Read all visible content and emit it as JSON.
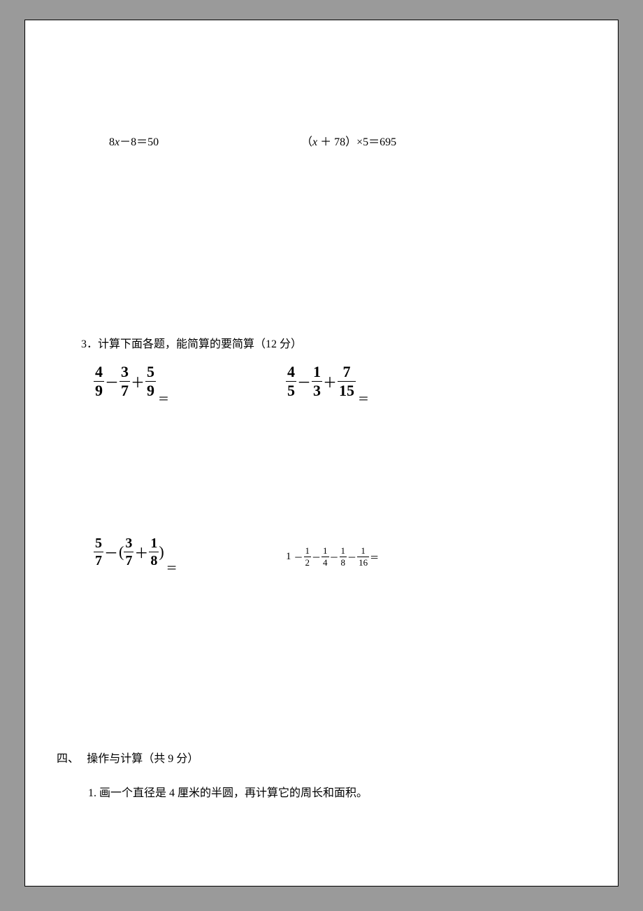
{
  "equations": {
    "left": {
      "prefix": "8",
      "var": "x",
      "rest": "－8＝50"
    },
    "right": {
      "open": "（",
      "var": "x",
      "mid": " ＋ 78）×5＝695"
    }
  },
  "section3": {
    "title": "3．计算下面各题，能简算的要简算（12 分）",
    "row1": {
      "left": {
        "f1": {
          "n": "4",
          "d": "9"
        },
        "op1": "－",
        "f2": {
          "n": "3",
          "d": "7"
        },
        "op2": "＋",
        "f3": {
          "n": "5",
          "d": "9"
        },
        "eq": "＝"
      },
      "right": {
        "f1": {
          "n": "4",
          "d": "5"
        },
        "op1": "－",
        "f2": {
          "n": "1",
          "d": "3"
        },
        "op2": "＋",
        "f3": {
          "n": "7",
          "d": "15"
        },
        "eq": "＝"
      }
    },
    "row2": {
      "left": {
        "f1": {
          "n": "5",
          "d": "7"
        },
        "op1": "－",
        "open": "(",
        "f2": {
          "n": "3",
          "d": "7"
        },
        "op2": "＋",
        "f3": {
          "n": "1",
          "d": "8"
        },
        "close": ")",
        "eq": "＝"
      },
      "right": {
        "head": "1",
        "op1": "－",
        "f1": {
          "n": "1",
          "d": "2"
        },
        "op2": "－",
        "f2": {
          "n": "1",
          "d": "4"
        },
        "op3": "－",
        "f3": {
          "n": "1",
          "d": "8"
        },
        "op4": "－",
        "f4": {
          "n": "1",
          "d": "16"
        },
        "eq": "＝"
      }
    }
  },
  "section4": {
    "title_prefix": "四、",
    "title_rest": "操作与计算（共 9 分）",
    "q1": "1. 画一个直径是 4 厘米的半圆，再计算它的周长和面积。"
  },
  "colors": {
    "page_bg": "#ffffff",
    "body_bg": "#9a9a9a",
    "text": "#000000",
    "border": "#000000"
  }
}
